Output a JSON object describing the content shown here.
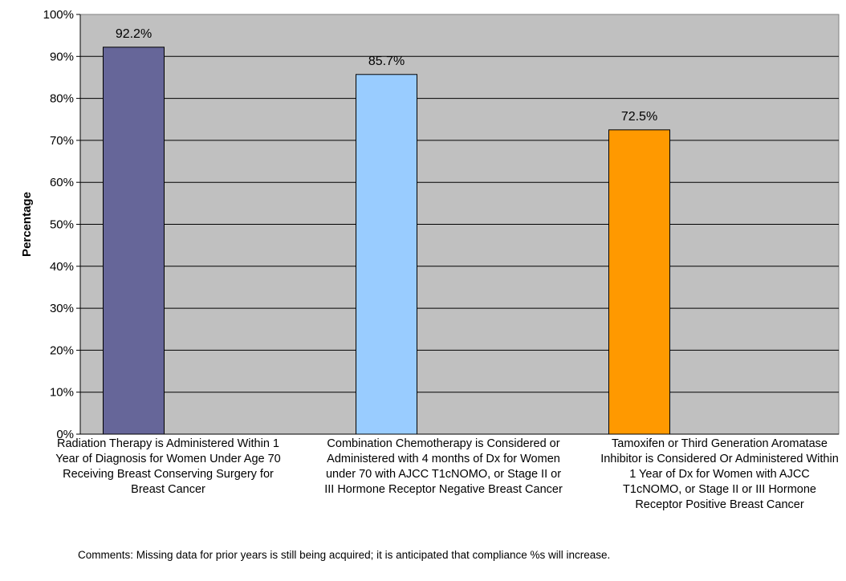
{
  "chart_data": {
    "type": "bar",
    "categories": [
      "Radiation Therapy is Administered Within 1 Year of Diagnosis for Women Under Age 70 Receiving Breast Conserving Surgery for Breast Cancer",
      "Combination Chemotherapy is Considered or Administered with 4 months of Dx for Women under 70 with AJCC T1cNOMO, or Stage II or III Hormone Receptor Negative Breast Cancer",
      "Tamoxifen or Third Generation Aromatase Inhibitor is Considered Or Administered Within 1 Year of Dx for Women with AJCC T1cNOMO, or Stage II or III Hormone Receptor Positive Breast Cancer"
    ],
    "values": [
      92.2,
      85.7,
      72.5
    ],
    "data_labels": [
      "92.2%",
      "85.7%",
      "72.5%"
    ],
    "bar_colors": [
      "#666699",
      "#99ccff",
      "#ff9900"
    ],
    "ylabel": "Percentage",
    "ylim": [
      0,
      100
    ],
    "yticks": [
      "0%",
      "10%",
      "20%",
      "30%",
      "40%",
      "50%",
      "60%",
      "70%",
      "80%",
      "90%",
      "100%"
    ],
    "grid": true,
    "plot_background": "#c0c0c0"
  },
  "comments": "Comments: Missing data for prior years is still being acquired; it is anticipated that compliance %s will increase."
}
